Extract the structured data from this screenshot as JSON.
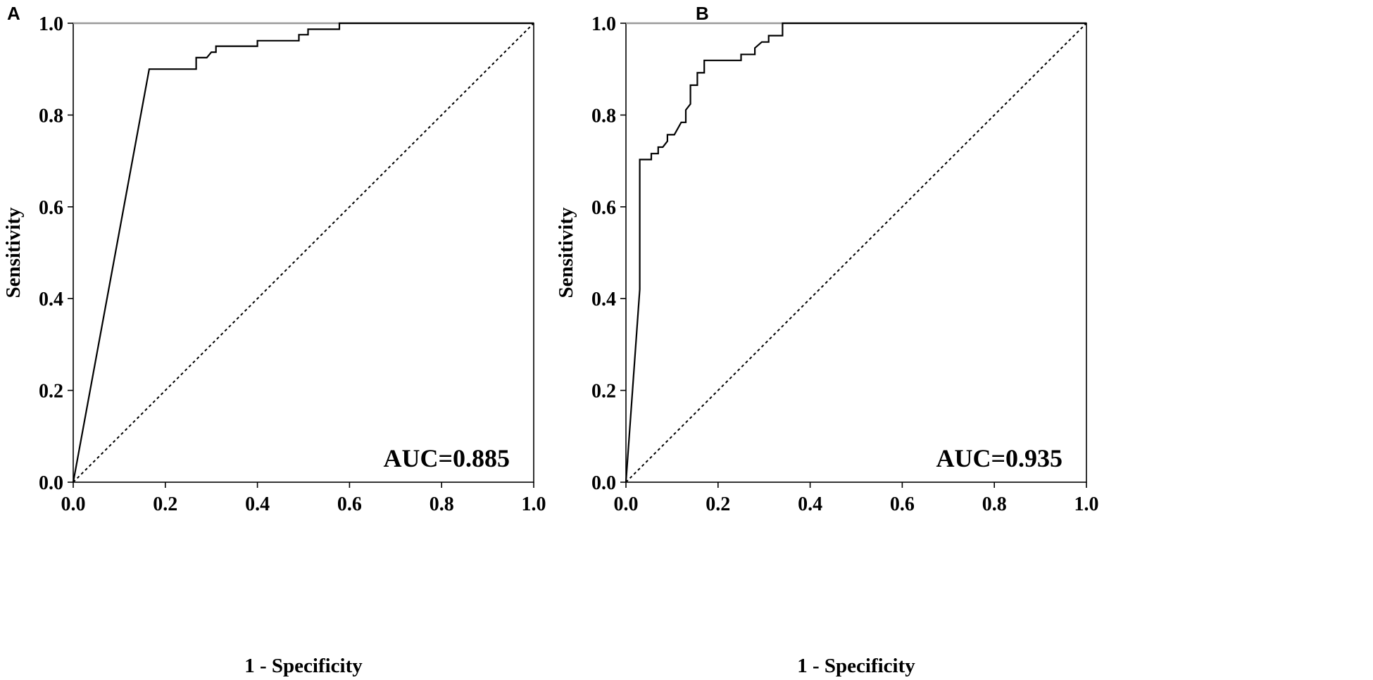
{
  "chart_data": [
    {
      "type": "line",
      "panel_label": "A",
      "xlabel": "1 - Specificity",
      "ylabel": "Sensitivity",
      "xlim": [
        0,
        1
      ],
      "ylim": [
        0,
        1
      ],
      "x_ticks": [
        "0.0",
        "0.2",
        "0.4",
        "0.6",
        "0.8",
        "1.0"
      ],
      "y_ticks": [
        "0.0",
        "0.2",
        "0.4",
        "0.6",
        "0.8",
        "1.0"
      ],
      "annotation": "AUC=0.885",
      "grid": false,
      "series": [
        {
          "role": "roc",
          "points": [
            [
              0.0,
              0.0
            ],
            [
              0.165,
              0.9
            ],
            [
              0.267,
              0.9
            ],
            [
              0.267,
              0.925
            ],
            [
              0.29,
              0.925
            ],
            [
              0.3,
              0.937
            ],
            [
              0.31,
              0.937
            ],
            [
              0.31,
              0.95
            ],
            [
              0.4,
              0.95
            ],
            [
              0.4,
              0.962
            ],
            [
              0.49,
              0.962
            ],
            [
              0.49,
              0.975
            ],
            [
              0.51,
              0.975
            ],
            [
              0.51,
              0.987
            ],
            [
              0.578,
              0.987
            ],
            [
              0.578,
              1.0
            ],
            [
              1.0,
              1.0
            ]
          ]
        },
        {
          "role": "reference",
          "points": [
            [
              0,
              0
            ],
            [
              1,
              1
            ]
          ]
        }
      ]
    },
    {
      "type": "line",
      "panel_label": "B",
      "xlabel": "1 - Specificity",
      "ylabel": "Sensitivity",
      "xlim": [
        0,
        1
      ],
      "ylim": [
        0,
        1
      ],
      "x_ticks": [
        "0.0",
        "0.2",
        "0.4",
        "0.6",
        "0.8",
        "1.0"
      ],
      "y_ticks": [
        "0.0",
        "0.2",
        "0.4",
        "0.6",
        "0.8",
        "1.0"
      ],
      "annotation": "AUC=0.935",
      "grid": false,
      "series": [
        {
          "role": "roc",
          "points": [
            [
              0.0,
              0.0
            ],
            [
              0.03,
              0.42
            ],
            [
              0.03,
              0.703
            ],
            [
              0.055,
              0.703
            ],
            [
              0.055,
              0.716
            ],
            [
              0.07,
              0.716
            ],
            [
              0.07,
              0.73
            ],
            [
              0.08,
              0.73
            ],
            [
              0.09,
              0.743
            ],
            [
              0.09,
              0.757
            ],
            [
              0.105,
              0.757
            ],
            [
              0.12,
              0.784
            ],
            [
              0.13,
              0.784
            ],
            [
              0.13,
              0.811
            ],
            [
              0.14,
              0.824
            ],
            [
              0.14,
              0.865
            ],
            [
              0.155,
              0.865
            ],
            [
              0.155,
              0.892
            ],
            [
              0.17,
              0.892
            ],
            [
              0.17,
              0.919
            ],
            [
              0.25,
              0.919
            ],
            [
              0.25,
              0.932
            ],
            [
              0.28,
              0.932
            ],
            [
              0.28,
              0.946
            ],
            [
              0.295,
              0.959
            ],
            [
              0.31,
              0.959
            ],
            [
              0.31,
              0.973
            ],
            [
              0.34,
              0.973
            ],
            [
              0.34,
              1.0
            ],
            [
              1.0,
              1.0
            ]
          ]
        },
        {
          "role": "reference",
          "points": [
            [
              0,
              0
            ],
            [
              1,
              1
            ]
          ]
        }
      ]
    }
  ]
}
